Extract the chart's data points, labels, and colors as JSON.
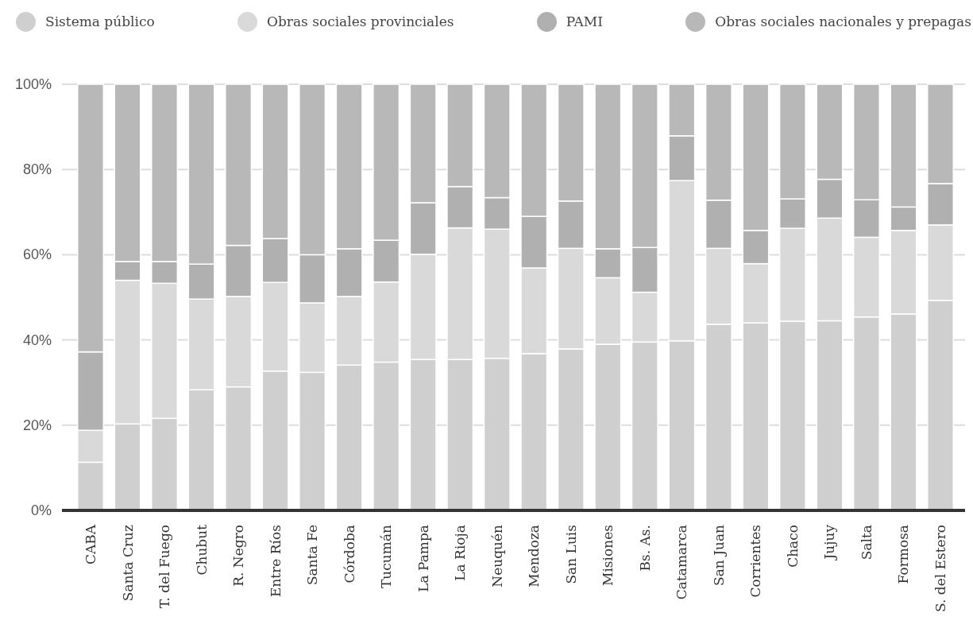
{
  "chart_data": {
    "type": "bar",
    "stacked": true,
    "legend": "top",
    "grid": "y",
    "categories": [
      "CABA",
      "Santa Cruz",
      "T. del Fuego",
      "Chubut",
      "R. Negro",
      "Entre Ríos",
      "Santa Fe",
      "Córdoba",
      "Tucumán",
      "La Pampa",
      "La Rioja",
      "Neuquén",
      "Mendoza",
      "San Luis",
      "Misiones",
      "Bs. As.",
      "Catamarca",
      "San Juan",
      "Corrientes",
      "Chaco",
      "Jujuy",
      "Salta",
      "Formosa",
      "S. del Estero"
    ],
    "series": [
      {
        "name": "Sistema público",
        "color": "#cfcfcf",
        "values": [
          11.3,
          20.3,
          21.6,
          28.3,
          29.0,
          32.7,
          32.4,
          34.1,
          34.8,
          35.4,
          35.4,
          35.7,
          36.8,
          37.9,
          39.0,
          39.5,
          39.8,
          43.7,
          44.0,
          44.4,
          44.5,
          45.4,
          46.1,
          49.3
        ]
      },
      {
        "name": "Obras sociales provinciales",
        "color": "#d9d9d9",
        "values": [
          7.5,
          33.7,
          31.7,
          21.3,
          21.2,
          20.8,
          16.3,
          16.1,
          18.8,
          24.7,
          30.9,
          30.3,
          20.1,
          23.6,
          15.6,
          11.7,
          37.6,
          17.8,
          13.9,
          21.8,
          24.1,
          18.7,
          19.6,
          17.7
        ]
      },
      {
        "name": "PAMI",
        "color": "#b0b0b0",
        "values": [
          18.4,
          4.4,
          5.1,
          8.2,
          12.0,
          10.3,
          11.3,
          11.2,
          9.8,
          12.1,
          9.7,
          7.4,
          12.1,
          11.1,
          6.8,
          10.5,
          10.5,
          11.3,
          7.8,
          6.9,
          9.1,
          8.8,
          5.5,
          9.7
        ]
      },
      {
        "name": "Obras sociales nacionales y prepagas",
        "color": "#b8b8b8",
        "values": [
          62.8,
          41.6,
          41.6,
          42.2,
          37.8,
          36.2,
          40.0,
          38.6,
          36.6,
          27.8,
          24.0,
          26.6,
          31.0,
          27.4,
          38.6,
          38.3,
          12.1,
          27.2,
          34.3,
          26.9,
          22.3,
          27.1,
          28.8,
          23.3
        ]
      }
    ],
    "ylim": [
      0,
      100
    ],
    "yticks": [
      {
        "value": 0,
        "label": "0%"
      },
      {
        "value": 20,
        "label": "20%"
      },
      {
        "value": 40,
        "label": "40%"
      },
      {
        "value": 60,
        "label": "60%"
      },
      {
        "value": 80,
        "label": "80%"
      },
      {
        "value": 100,
        "label": "100%"
      }
    ]
  }
}
